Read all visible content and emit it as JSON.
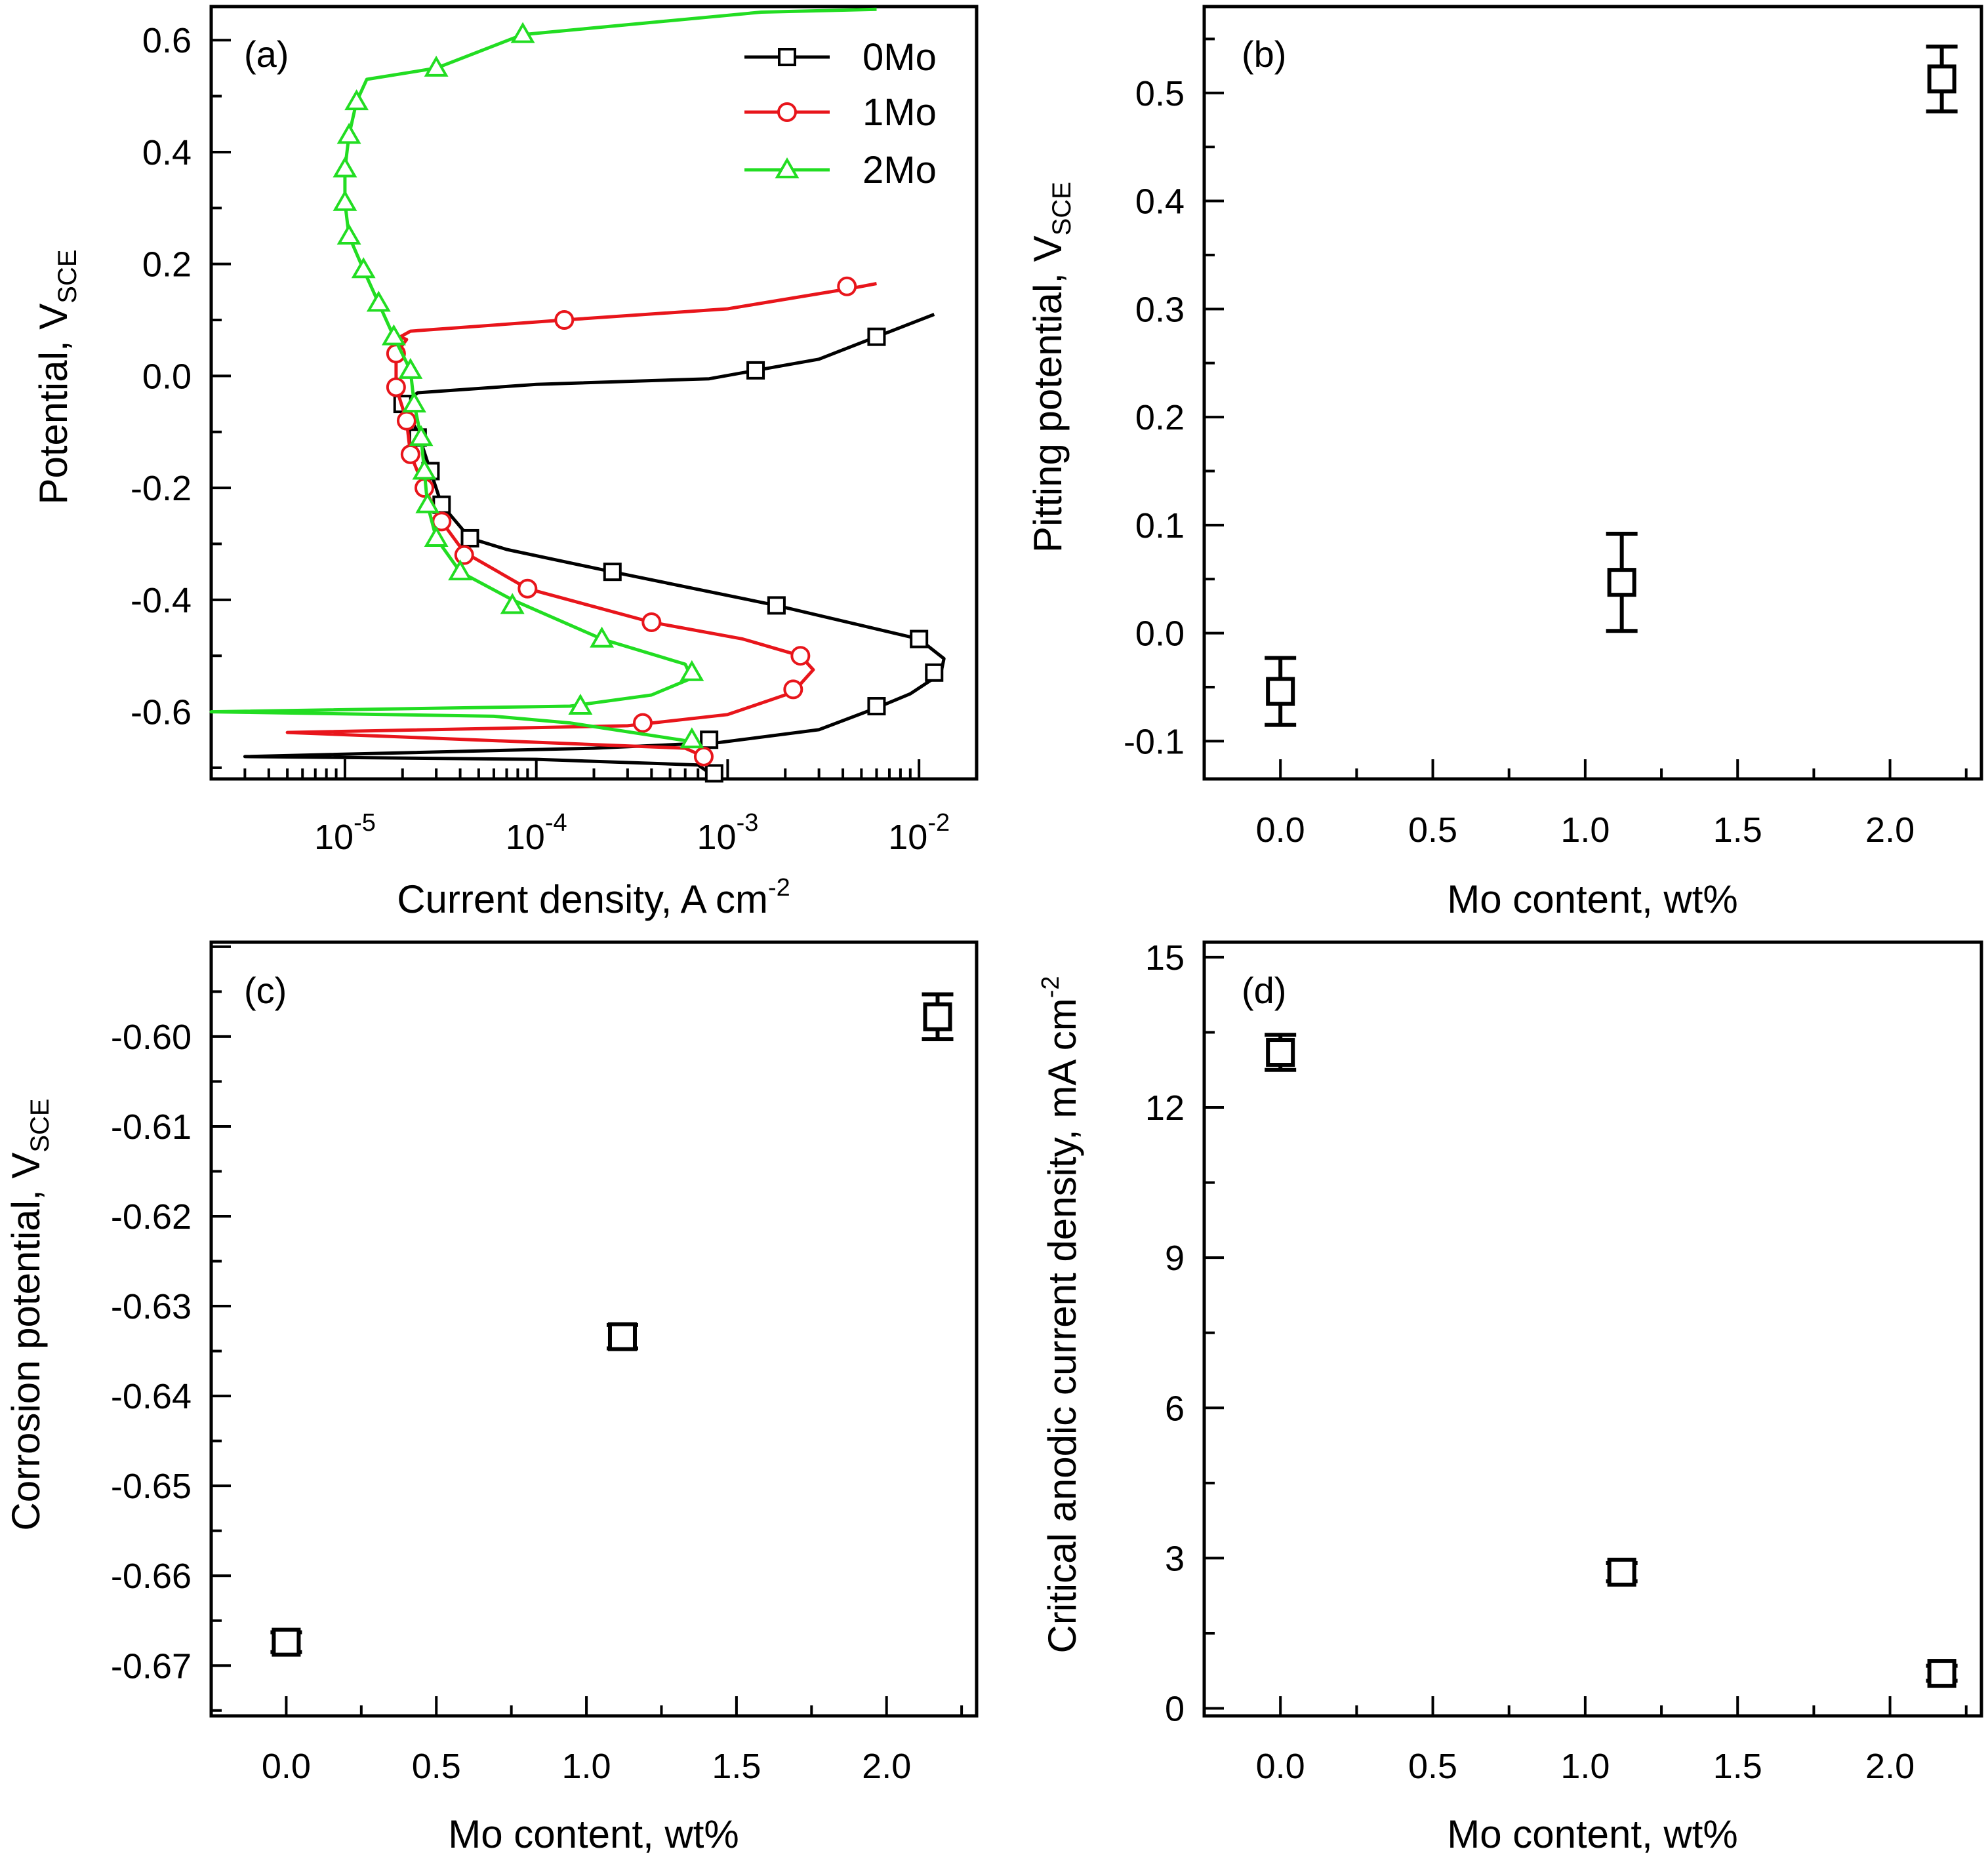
{
  "chart_data": [
    {
      "panel": "(a)",
      "type": "line",
      "x_scale": "log",
      "xlabel": "Current density, A cm",
      "xlabel_sup": "-2",
      "ylabel": "Potential, V",
      "ylabel_sub": "SCE",
      "xlim": [
        2e-06,
        0.02
      ],
      "ylim": [
        -0.72,
        0.66
      ],
      "x_tick_labels": [
        {
          "base": "10",
          "exp": "-5",
          "value": 1e-05
        },
        {
          "base": "10",
          "exp": "-4",
          "value": 0.0001
        },
        {
          "base": "10",
          "exp": "-3",
          "value": 0.001
        },
        {
          "base": "10",
          "exp": "-2",
          "value": 0.01
        }
      ],
      "y_ticks": [
        -0.6,
        -0.4,
        -0.2,
        0.0,
        0.2,
        0.4,
        0.6
      ],
      "y_tick_labels": [
        "-0.6",
        "-0.4",
        "-0.2",
        "0.0",
        "0.2",
        "0.4",
        "0.6"
      ],
      "legend": {
        "position": "top-right",
        "entries": [
          "0Mo",
          "1Mo",
          "2Mo"
        ]
      },
      "series": [
        {
          "name": "0Mo",
          "color": "#000000",
          "marker": "square",
          "points": [
            [
              0.00085,
              -0.715
            ],
            [
              0.0007,
              -0.695
            ],
            [
              0.0001,
              -0.685
            ],
            [
              3e-06,
              -0.68
            ],
            [
              0.0002,
              -0.665
            ],
            [
              0.0009,
              -0.655
            ],
            [
              0.003,
              -0.632
            ],
            [
              0.006,
              -0.593
            ],
            [
              0.009,
              -0.568
            ],
            [
              0.013,
              -0.532
            ],
            [
              0.0135,
              -0.505
            ],
            [
              0.01,
              -0.47
            ],
            [
              0.0018,
              -0.41
            ],
            [
              0.00025,
              -0.35
            ],
            [
              7e-05,
              -0.31
            ],
            [
              4.5e-05,
              -0.29
            ],
            [
              3.2e-05,
              -0.23
            ],
            [
              2.8e-05,
              -0.17
            ],
            [
              2.4e-05,
              -0.1
            ],
            [
              2e-05,
              -0.05
            ],
            [
              2.4e-05,
              -0.03
            ],
            [
              0.0001,
              -0.015
            ],
            [
              0.0008,
              -0.005
            ],
            [
              0.0014,
              0.01
            ],
            [
              0.003,
              0.03
            ],
            [
              0.006,
              0.07
            ],
            [
              0.012,
              0.11
            ]
          ],
          "marker_points": [
            [
              0.00085,
              -0.71
            ],
            [
              0.0008,
              -0.65
            ],
            [
              0.006,
              -0.59
            ],
            [
              0.012,
              -0.53
            ],
            [
              0.01,
              -0.47
            ],
            [
              0.0018,
              -0.41
            ],
            [
              0.00025,
              -0.35
            ],
            [
              4.5e-05,
              -0.29
            ],
            [
              3.2e-05,
              -0.23
            ],
            [
              2.8e-05,
              -0.17
            ],
            [
              2.4e-05,
              -0.11
            ],
            [
              2e-05,
              -0.05
            ],
            [
              0.0014,
              0.01
            ],
            [
              0.006,
              0.07
            ]
          ]
        },
        {
          "name": "1Mo",
          "color": "#e8151b",
          "marker": "circle",
          "points": [
            [
              0.00075,
              -0.68
            ],
            [
              0.0006,
              -0.665
            ],
            [
              5e-06,
              -0.637
            ],
            [
              0.0003,
              -0.625
            ],
            [
              0.001,
              -0.605
            ],
            [
              0.0022,
              -0.565
            ],
            [
              0.0028,
              -0.525
            ],
            [
              0.0024,
              -0.5
            ],
            [
              0.0012,
              -0.47
            ],
            [
              0.0004,
              -0.44
            ],
            [
              9e-05,
              -0.38
            ],
            [
              4.2e-05,
              -0.315
            ],
            [
              3.2e-05,
              -0.26
            ],
            [
              2.6e-05,
              -0.2
            ],
            [
              2.2e-05,
              -0.14
            ],
            [
              2.1e-05,
              -0.08
            ],
            [
              1.85e-05,
              -0.02
            ],
            [
              1.85e-05,
              0.04
            ],
            [
              2.1e-05,
              0.065
            ],
            [
              1.95e-05,
              0.07
            ],
            [
              2.2e-05,
              0.08
            ],
            [
              0.00014,
              0.1
            ],
            [
              0.001,
              0.12
            ],
            [
              0.0045,
              0.157
            ],
            [
              0.006,
              0.165
            ]
          ],
          "marker_points": [
            [
              0.00075,
              -0.68
            ],
            [
              0.00036,
              -0.62
            ],
            [
              0.0022,
              -0.56
            ],
            [
              0.0024,
              -0.5
            ],
            [
              0.0004,
              -0.44
            ],
            [
              9e-05,
              -0.38
            ],
            [
              4.2e-05,
              -0.32
            ],
            [
              3.2e-05,
              -0.26
            ],
            [
              2.6e-05,
              -0.2
            ],
            [
              2.2e-05,
              -0.14
            ],
            [
              2.1e-05,
              -0.08
            ],
            [
              1.85e-05,
              -0.02
            ],
            [
              1.85e-05,
              0.04
            ],
            [
              0.00014,
              0.1
            ],
            [
              0.0042,
              0.16
            ]
          ]
        },
        {
          "name": "2Mo",
          "color": "#22dd22",
          "marker": "triangle",
          "points": [
            [
              0.0007,
              -0.655
            ],
            [
              0.00015,
              -0.62
            ],
            [
              6e-05,
              -0.608
            ],
            [
              2e-06,
              -0.6
            ],
            [
              0.00015,
              -0.59
            ],
            [
              0.0004,
              -0.57
            ],
            [
              0.00065,
              -0.54
            ],
            [
              0.0006,
              -0.515
            ],
            [
              0.00022,
              -0.47
            ],
            [
              7.5e-05,
              -0.4
            ],
            [
              4e-05,
              -0.35
            ],
            [
              3e-05,
              -0.29
            ],
            [
              2.7e-05,
              -0.23
            ],
            [
              2.6e-05,
              -0.17
            ],
            [
              2.5e-05,
              -0.11
            ],
            [
              2.3e-05,
              -0.05
            ],
            [
              2.2e-05,
              0.01
            ],
            [
              1.8e-05,
              0.07
            ],
            [
              1.5e-05,
              0.13
            ],
            [
              1.25e-05,
              0.19
            ],
            [
              1.05e-05,
              0.25
            ],
            [
              1e-05,
              0.31
            ],
            [
              1e-05,
              0.37
            ],
            [
              1.05e-05,
              0.43
            ],
            [
              1.15e-05,
              0.49
            ],
            [
              1.3e-05,
              0.53
            ],
            [
              3e-05,
              0.55
            ],
            [
              8.5e-05,
              0.61
            ],
            [
              0.0015,
              0.65
            ],
            [
              0.006,
              0.655
            ]
          ],
          "marker_points": [
            [
              0.00065,
              -0.65
            ],
            [
              0.00017,
              -0.59
            ],
            [
              0.00065,
              -0.53
            ],
            [
              0.00022,
              -0.47
            ],
            [
              7.5e-05,
              -0.41
            ],
            [
              4e-05,
              -0.35
            ],
            [
              3e-05,
              -0.29
            ],
            [
              2.7e-05,
              -0.23
            ],
            [
              2.6e-05,
              -0.17
            ],
            [
              2.5e-05,
              -0.11
            ],
            [
              2.3e-05,
              -0.05
            ],
            [
              2.2e-05,
              0.01
            ],
            [
              1.8e-05,
              0.07
            ],
            [
              1.5e-05,
              0.13
            ],
            [
              1.25e-05,
              0.19
            ],
            [
              1.05e-05,
              0.25
            ],
            [
              1e-05,
              0.31
            ],
            [
              1e-05,
              0.37
            ],
            [
              1.05e-05,
              0.43
            ],
            [
              1.15e-05,
              0.49
            ],
            [
              3e-05,
              0.55
            ],
            [
              8.5e-05,
              0.61
            ]
          ]
        }
      ]
    },
    {
      "panel": "(b)",
      "type": "scatter",
      "xlabel": "Mo content, wt%",
      "ylabel": "Pitting potential, V",
      "ylabel_sub": "SCE",
      "xlim": [
        -0.25,
        2.3
      ],
      "ylim": [
        -0.135,
        0.58
      ],
      "x_ticks": [
        0.0,
        0.5,
        1.0,
        1.5,
        2.0
      ],
      "x_tick_labels": [
        "0.0",
        "0.5",
        "1.0",
        "1.5",
        "2.0"
      ],
      "y_ticks": [
        -0.1,
        0.0,
        0.1,
        0.2,
        0.3,
        0.4,
        0.5
      ],
      "y_tick_labels": [
        "-0.1",
        "0.0",
        "0.1",
        "0.2",
        "0.3",
        "0.4",
        "0.5"
      ],
      "points": [
        {
          "x": 0.0,
          "y": -0.054,
          "err": 0.031
        },
        {
          "x": 1.12,
          "y": 0.047,
          "err": 0.045
        },
        {
          "x": 2.17,
          "y": 0.513,
          "err": 0.03
        }
      ]
    },
    {
      "panel": "(c)",
      "type": "scatter",
      "xlabel": "Mo content, wt%",
      "ylabel": "Corrosion potential, V",
      "ylabel_sub": "SCE",
      "xlim": [
        -0.25,
        2.3
      ],
      "ylim": [
        -0.6756,
        -0.5895
      ],
      "x_ticks": [
        0.0,
        0.5,
        1.0,
        1.5,
        2.0
      ],
      "x_tick_labels": [
        "0.0",
        "0.5",
        "1.0",
        "1.5",
        "2.0"
      ],
      "y_ticks": [
        -0.67,
        -0.66,
        -0.65,
        -0.64,
        -0.63,
        -0.62,
        -0.61,
        -0.6
      ],
      "y_tick_labels": [
        "-0.67",
        "-0.66",
        "-0.65",
        "-0.64",
        "-0.63",
        "-0.62",
        "-0.61",
        "-0.60"
      ],
      "points": [
        {
          "x": 0.0,
          "y": -0.6674,
          "err": 0.0011
        },
        {
          "x": 1.12,
          "y": -0.6334,
          "err": 0.0013
        },
        {
          "x": 2.17,
          "y": -0.5978,
          "err": 0.0025
        }
      ]
    },
    {
      "panel": "(d)",
      "type": "scatter",
      "xlabel": "Mo content, wt%",
      "ylabel": "Critical anodic current density, mA cm",
      "ylabel_sup": "-2",
      "xlim": [
        -0.25,
        2.3
      ],
      "ylim": [
        -0.15,
        15.3
      ],
      "x_ticks": [
        0.0,
        0.5,
        1.0,
        1.5,
        2.0
      ],
      "x_tick_labels": [
        "0.0",
        "0.5",
        "1.0",
        "1.5",
        "2.0"
      ],
      "y_ticks": [
        0,
        3,
        6,
        9,
        12,
        15
      ],
      "y_tick_labels": [
        "0",
        "3",
        "6",
        "9",
        "12",
        "15"
      ],
      "points": [
        {
          "x": 0.0,
          "y": 13.1,
          "err": 0.35
        },
        {
          "x": 1.12,
          "y": 2.72,
          "err": 0.18
        },
        {
          "x": 2.17,
          "y": 0.7,
          "err": 0.15
        }
      ]
    }
  ]
}
